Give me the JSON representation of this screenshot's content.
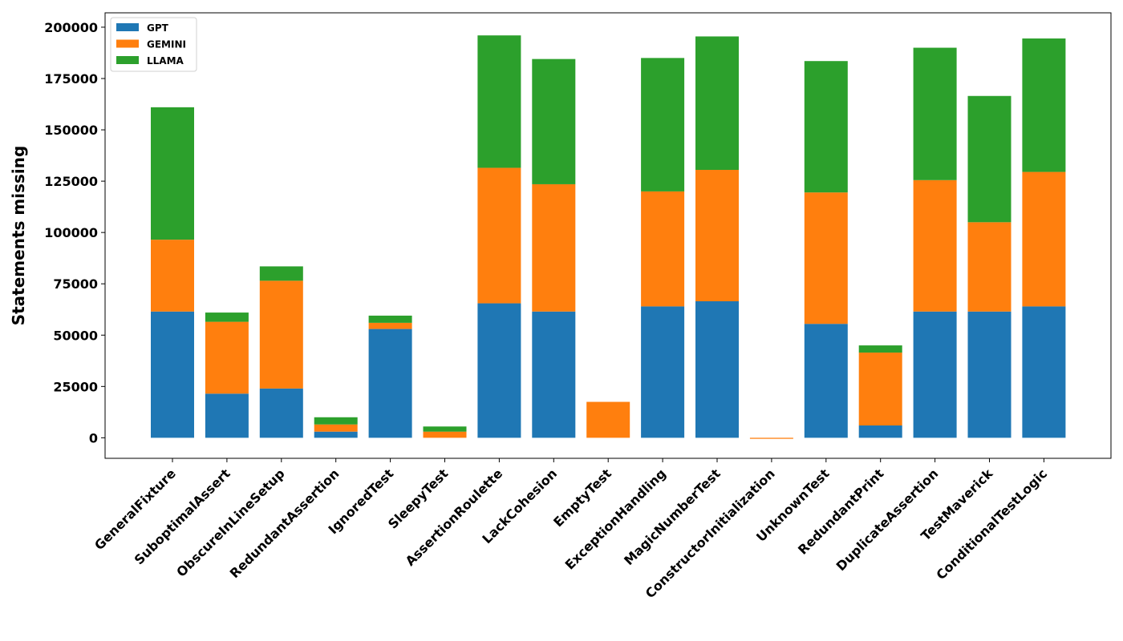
{
  "chart_data": {
    "type": "bar",
    "stacked": true,
    "title": "",
    "xlabel": "",
    "ylabel": "Statements missing",
    "ylim": [
      -10000,
      207000
    ],
    "yticks": [
      0,
      25000,
      50000,
      75000,
      100000,
      125000,
      150000,
      175000,
      200000
    ],
    "grid": false,
    "legend_position": "top-left",
    "categories": [
      "GeneralFixture",
      "SuboptimalAssert",
      "ObscureInLineSetup",
      "RedundantAssertion",
      "IgnoredTest",
      "SleepyTest",
      "AssertionRoulette",
      "LackCohesion",
      "EmptyTest",
      "ExceptionHandling",
      "MagicNumberTest",
      "ConstructorInitialization",
      "UnknownTest",
      "RedundantPrint",
      "DuplicateAssertion",
      "TestMaverick",
      "ConditionalTestLogic"
    ],
    "series": [
      {
        "name": "GPT",
        "color": "#1f77b4",
        "values": [
          61500,
          21500,
          24000,
          3000,
          53000,
          0,
          65500,
          61500,
          0,
          64000,
          66500,
          0,
          55500,
          6000,
          61500,
          61500,
          64000
        ]
      },
      {
        "name": "GEMINI",
        "color": "#ff7f0e",
        "values": [
          35000,
          35000,
          52500,
          3500,
          3000,
          3000,
          66000,
          62000,
          17500,
          56000,
          64000,
          -500,
          64000,
          35500,
          64000,
          43500,
          65500
        ]
      },
      {
        "name": "LLAMA",
        "color": "#2ca02c",
        "values": [
          64500,
          4500,
          7000,
          3500,
          3500,
          2500,
          64500,
          61000,
          0,
          65000,
          65000,
          0,
          64000,
          3500,
          64500,
          61500,
          65000
        ]
      }
    ]
  }
}
